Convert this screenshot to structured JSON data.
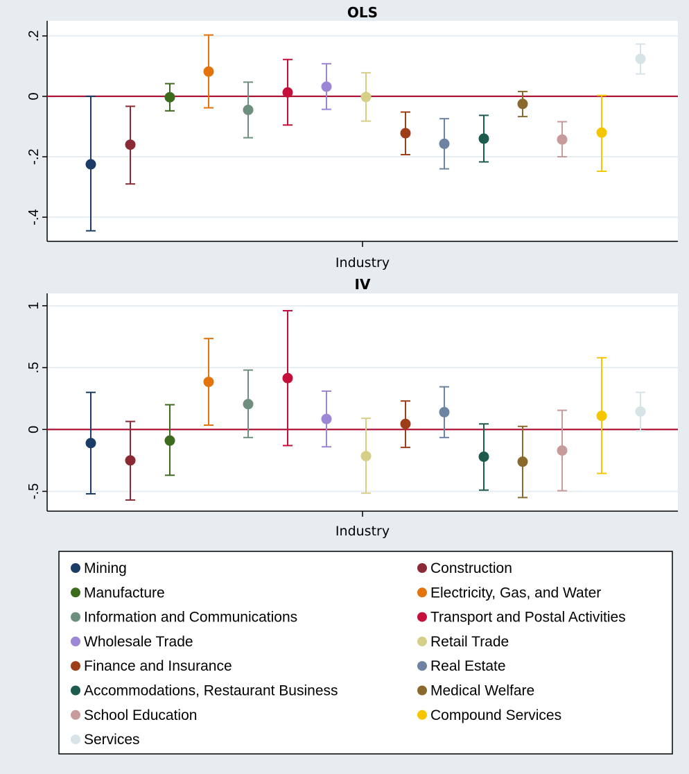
{
  "chart_data": [
    {
      "type": "scatter",
      "title": "OLS",
      "xlabel": "Industry",
      "ylabel": "",
      "ylim": [
        -0.48,
        0.25
      ],
      "yticks": [
        {
          "value": 0.2,
          "label": ".2"
        },
        {
          "value": 0,
          "label": "0"
        },
        {
          "value": -0.2,
          "label": "-.2"
        },
        {
          "value": -0.4,
          "label": "-.4"
        }
      ],
      "reference_line": 0,
      "grid": true,
      "series": [
        {
          "name": "Mining",
          "estimate": -0.225,
          "ci": [
            -0.445,
            0.0
          ]
        },
        {
          "name": "Construction",
          "estimate": -0.16,
          "ci": [
            -0.29,
            -0.033
          ]
        },
        {
          "name": "Manufacture",
          "estimate": -0.003,
          "ci": [
            -0.048,
            0.042
          ]
        },
        {
          "name": "Electricity, Gas, and Water",
          "estimate": 0.082,
          "ci": [
            -0.038,
            0.203
          ]
        },
        {
          "name": "Information and Communications",
          "estimate": -0.045,
          "ci": [
            -0.137,
            0.047
          ]
        },
        {
          "name": "Transport and Postal Activities",
          "estimate": 0.013,
          "ci": [
            -0.095,
            0.122
          ]
        },
        {
          "name": "Wholesale Trade",
          "estimate": 0.032,
          "ci": [
            -0.043,
            0.108
          ]
        },
        {
          "name": "Retail Trade",
          "estimate": -0.002,
          "ci": [
            -0.082,
            0.078
          ]
        },
        {
          "name": "Finance and Insurance",
          "estimate": -0.122,
          "ci": [
            -0.193,
            -0.052
          ]
        },
        {
          "name": "Real Estate",
          "estimate": -0.157,
          "ci": [
            -0.24,
            -0.074
          ]
        },
        {
          "name": "Accommodations, Restaurant Business",
          "estimate": -0.14,
          "ci": [
            -0.217,
            -0.063
          ]
        },
        {
          "name": "Medical Welfare",
          "estimate": -0.025,
          "ci": [
            -0.067,
            0.016
          ]
        },
        {
          "name": "School Education",
          "estimate": -0.143,
          "ci": [
            -0.2,
            -0.084
          ]
        },
        {
          "name": "Compound Services",
          "estimate": -0.12,
          "ci": [
            -0.248,
            0.003
          ]
        },
        {
          "name": "Services",
          "estimate": 0.124,
          "ci": [
            0.074,
            0.173
          ]
        }
      ]
    },
    {
      "type": "scatter",
      "title": "IV",
      "xlabel": "Industry",
      "ylabel": "",
      "ylim": [
        -0.66,
        1.1
      ],
      "yticks": [
        {
          "value": 1,
          "label": "1"
        },
        {
          "value": 0.5,
          "label": ".5"
        },
        {
          "value": 0,
          "label": "0"
        },
        {
          "value": -0.5,
          "label": "-.5"
        }
      ],
      "reference_line": 0,
      "grid": true,
      "series": [
        {
          "name": "Mining",
          "estimate": -0.11,
          "ci": [
            -0.52,
            0.3
          ]
        },
        {
          "name": "Construction",
          "estimate": -0.25,
          "ci": [
            -0.57,
            0.065
          ]
        },
        {
          "name": "Manufacture",
          "estimate": -0.09,
          "ci": [
            -0.37,
            0.2
          ]
        },
        {
          "name": "Electricity, Gas, and Water",
          "estimate": 0.385,
          "ci": [
            0.035,
            0.735
          ]
        },
        {
          "name": "Information and Communications",
          "estimate": 0.205,
          "ci": [
            -0.065,
            0.48
          ]
        },
        {
          "name": "Transport and Postal Activities",
          "estimate": 0.415,
          "ci": [
            -0.13,
            0.96
          ]
        },
        {
          "name": "Wholesale Trade",
          "estimate": 0.085,
          "ci": [
            -0.14,
            0.31
          ]
        },
        {
          "name": "Retail Trade",
          "estimate": -0.215,
          "ci": [
            -0.515,
            0.09
          ]
        },
        {
          "name": "Finance and Insurance",
          "estimate": 0.045,
          "ci": [
            -0.145,
            0.23
          ]
        },
        {
          "name": "Real Estate",
          "estimate": 0.14,
          "ci": [
            -0.065,
            0.345
          ]
        },
        {
          "name": "Accommodations, Restaurant Business",
          "estimate": -0.22,
          "ci": [
            -0.49,
            0.045
          ]
        },
        {
          "name": "Medical Welfare",
          "estimate": -0.26,
          "ci": [
            -0.55,
            0.025
          ]
        },
        {
          "name": "School Education",
          "estimate": -0.17,
          "ci": [
            -0.495,
            0.155
          ]
        },
        {
          "name": "Compound Services",
          "estimate": 0.11,
          "ci": [
            -0.355,
            0.58
          ]
        },
        {
          "name": "Services",
          "estimate": 0.145,
          "ci": [
            -0.01,
            0.3
          ]
        }
      ]
    }
  ],
  "legend": {
    "placement": "bottom",
    "items": [
      {
        "label": "Mining",
        "color": "#1a3c66"
      },
      {
        "label": "Construction",
        "color": "#8b2a35"
      },
      {
        "label": "Manufacture",
        "color": "#3d6b1e"
      },
      {
        "label": "Electricity, Gas, and Water",
        "color": "#e2740b"
      },
      {
        "label": "Information and Communications",
        "color": "#6e8e7e"
      },
      {
        "label": "Transport and Postal Activities",
        "color": "#c40f3a"
      },
      {
        "label": "Wholesale Trade",
        "color": "#9b87d4"
      },
      {
        "label": "Retail Trade",
        "color": "#d6cf8a"
      },
      {
        "label": "Finance and Insurance",
        "color": "#9c3d18"
      },
      {
        "label": "Real Estate",
        "color": "#6c84a1"
      },
      {
        "label": "Accommodations, Restaurant Business",
        "color": "#1d5b4f"
      },
      {
        "label": "Medical Welfare",
        "color": "#8a6a2c"
      },
      {
        "label": "School Education",
        "color": "#c79b99"
      },
      {
        "label": "Compound Services",
        "color": "#f5c600"
      },
      {
        "label": "Services",
        "color": "#d6e4e8"
      }
    ]
  },
  "colors": {
    "background": "#e6ecf0",
    "plot_area": "#ffffff",
    "gridline": "#e7edf1",
    "reference_line": "#b0173a"
  }
}
